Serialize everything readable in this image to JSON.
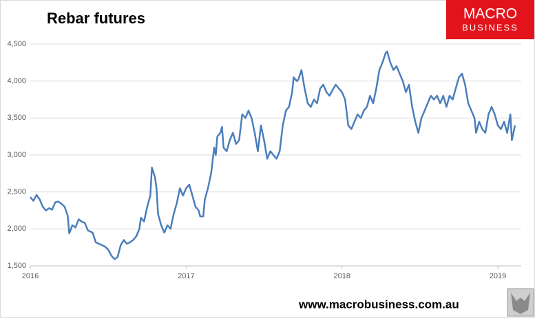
{
  "chart_data": {
    "type": "line",
    "title": "Rebar futures",
    "logo": {
      "line1": "MACRO",
      "line2": "BUSINESS"
    },
    "footer": "www.macrobusiness.com.au",
    "xlim": [
      2016,
      2019.15
    ],
    "xticks": [
      2016,
      2017,
      2018,
      2019
    ],
    "ylim": [
      1500,
      4500
    ],
    "yticks": [
      {
        "value": 1500,
        "label": "1,500"
      },
      {
        "value": 2000,
        "label": "2,000"
      },
      {
        "value": 2500,
        "label": "2,500"
      },
      {
        "value": 3000,
        "label": "3,000"
      },
      {
        "value": 3500,
        "label": "3,500"
      },
      {
        "value": 4000,
        "label": "4,000"
      },
      {
        "value": 4500,
        "label": "4,500"
      }
    ],
    "grid": true,
    "x": [
      2016.0,
      2016.02,
      2016.04,
      2016.06,
      2016.08,
      2016.1,
      2016.12,
      2016.14,
      2016.16,
      2016.18,
      2016.2,
      2016.22,
      2016.24,
      2016.25,
      2016.27,
      2016.29,
      2016.31,
      2016.33,
      2016.35,
      2016.37,
      2016.4,
      2016.42,
      2016.45,
      2016.48,
      2016.5,
      2016.52,
      2016.54,
      2016.56,
      2016.58,
      2016.6,
      2016.62,
      2016.64,
      2016.66,
      2016.68,
      2016.7,
      2016.71,
      2016.73,
      2016.75,
      2016.77,
      2016.78,
      2016.8,
      2016.81,
      2016.82,
      2016.84,
      2016.86,
      2016.88,
      2016.9,
      2016.92,
      2016.94,
      2016.96,
      2016.98,
      2017.0,
      2017.02,
      2017.04,
      2017.06,
      2017.08,
      2017.09,
      2017.11,
      2017.12,
      2017.14,
      2017.16,
      2017.18,
      2017.19,
      2017.2,
      2017.22,
      2017.23,
      2017.24,
      2017.26,
      2017.28,
      2017.3,
      2017.32,
      2017.34,
      2017.36,
      2017.38,
      2017.4,
      2017.42,
      2017.44,
      2017.46,
      2017.48,
      2017.5,
      2017.52,
      2017.54,
      2017.56,
      2017.58,
      2017.6,
      2017.62,
      2017.64,
      2017.66,
      2017.68,
      2017.69,
      2017.71,
      2017.72,
      2017.74,
      2017.76,
      2017.78,
      2017.8,
      2017.82,
      2017.84,
      2017.86,
      2017.88,
      2017.9,
      2017.92,
      2017.94,
      2017.96,
      2017.98,
      2018.0,
      2018.02,
      2018.04,
      2018.06,
      2018.08,
      2018.1,
      2018.12,
      2018.14,
      2018.16,
      2018.18,
      2018.2,
      2018.22,
      2018.24,
      2018.26,
      2018.28,
      2018.29,
      2018.31,
      2018.33,
      2018.35,
      2018.37,
      2018.39,
      2018.41,
      2018.43,
      2018.45,
      2018.47,
      2018.49,
      2018.51,
      2018.53,
      2018.55,
      2018.57,
      2018.59,
      2018.61,
      2018.63,
      2018.65,
      2018.67,
      2018.69,
      2018.71,
      2018.73,
      2018.75,
      2018.77,
      2018.79,
      2018.81,
      2018.83,
      2018.85,
      2018.86,
      2018.88,
      2018.9,
      2018.92,
      2018.94,
      2018.96,
      2018.98,
      2019.0,
      2019.02,
      2019.04,
      2019.06,
      2019.08,
      2019.09,
      2019.11
    ],
    "series": [
      {
        "name": "Rebar futures",
        "color": "#4a7ebb",
        "values": [
          2430,
          2380,
          2460,
          2400,
          2300,
          2250,
          2280,
          2260,
          2360,
          2370,
          2340,
          2300,
          2180,
          1940,
          2050,
          2020,
          2130,
          2100,
          2080,
          1980,
          1950,
          1820,
          1790,
          1760,
          1720,
          1640,
          1590,
          1620,
          1780,
          1850,
          1800,
          1820,
          1850,
          1900,
          2000,
          2150,
          2100,
          2300,
          2450,
          2830,
          2700,
          2550,
          2200,
          2050,
          1950,
          2050,
          2000,
          2200,
          2350,
          2550,
          2450,
          2550,
          2600,
          2450,
          2300,
          2250,
          2170,
          2170,
          2400,
          2550,
          2750,
          3100,
          3000,
          3250,
          3300,
          3380,
          3100,
          3050,
          3200,
          3300,
          3150,
          3200,
          3550,
          3500,
          3600,
          3500,
          3300,
          3050,
          3400,
          3200,
          2950,
          3050,
          3000,
          2950,
          3050,
          3400,
          3600,
          3650,
          3850,
          4050,
          4000,
          4020,
          4150,
          3900,
          3700,
          3650,
          3750,
          3700,
          3900,
          3950,
          3850,
          3800,
          3880,
          3950,
          3900,
          3850,
          3750,
          3400,
          3350,
          3450,
          3550,
          3500,
          3600,
          3650,
          3800,
          3700,
          3900,
          4150,
          4250,
          4380,
          4400,
          4250,
          4150,
          4200,
          4100,
          4000,
          3850,
          3950,
          3650,
          3450,
          3300,
          3500,
          3600,
          3700,
          3800,
          3750,
          3800,
          3700,
          3800,
          3650,
          3800,
          3750,
          3900,
          4050,
          4100,
          3950,
          3700,
          3600,
          3500,
          3300,
          3450,
          3350,
          3300,
          3550,
          3650,
          3550,
          3400,
          3350,
          3450,
          3300,
          3550,
          3200,
          3400
        ]
      }
    ]
  }
}
